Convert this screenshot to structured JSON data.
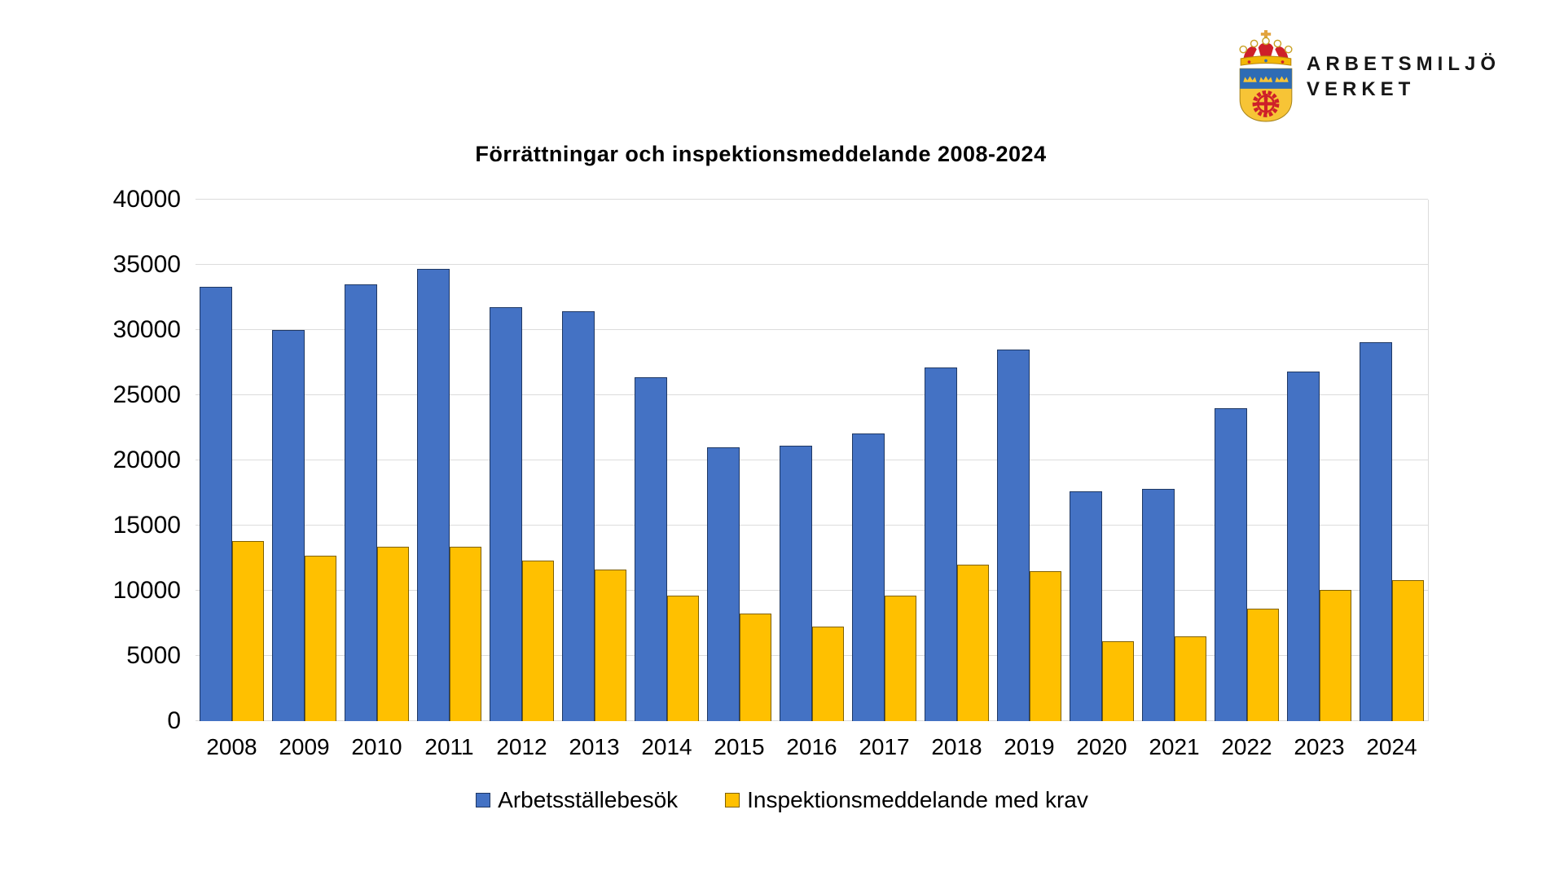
{
  "logo": {
    "line1": "ARBETSMILJÖ",
    "line2": "VERKET",
    "emblem": "coat-of-arms-three-crowns-gear",
    "colors": {
      "blue": "#2E6CB5",
      "gold": "#F7C436",
      "red": "#CE2029"
    }
  },
  "chart_data": {
    "type": "bar",
    "title": "Förrättningar och inspektionsmeddelande 2008-2024",
    "categories": [
      "2008",
      "2009",
      "2010",
      "2011",
      "2012",
      "2013",
      "2014",
      "2015",
      "2016",
      "2017",
      "2018",
      "2019",
      "2020",
      "2021",
      "2022",
      "2023",
      "2024"
    ],
    "series": [
      {
        "id": "arbetsstallebesok",
        "name": "Arbetsställebesök",
        "color": "#4472C4",
        "border_color": "#1F3864",
        "values": [
          33300,
          30000,
          33500,
          34700,
          31750,
          31450,
          26400,
          21000,
          21150,
          22050,
          27100,
          28500,
          17650,
          17800,
          24000,
          26800,
          29050
        ]
      },
      {
        "id": "inspektionsmeddelande-med-krav",
        "name": "Inspektionsmeddelande med krav",
        "color": "#FFC000",
        "border_color": "#7F6000",
        "values": [
          13800,
          12700,
          13400,
          13400,
          12300,
          11600,
          9650,
          8250,
          7250,
          9600,
          12000,
          11500,
          6100,
          6500,
          8650,
          10050,
          10800
        ]
      }
    ],
    "xlabel": "",
    "ylabel": "",
    "ylim": [
      0,
      40000
    ],
    "y_ticks": [
      40000,
      35000,
      30000,
      25000,
      20000,
      15000,
      10000,
      5000,
      0
    ],
    "grid": true,
    "gridline_color": "#DCDCDC",
    "legend_position": "bottom"
  }
}
